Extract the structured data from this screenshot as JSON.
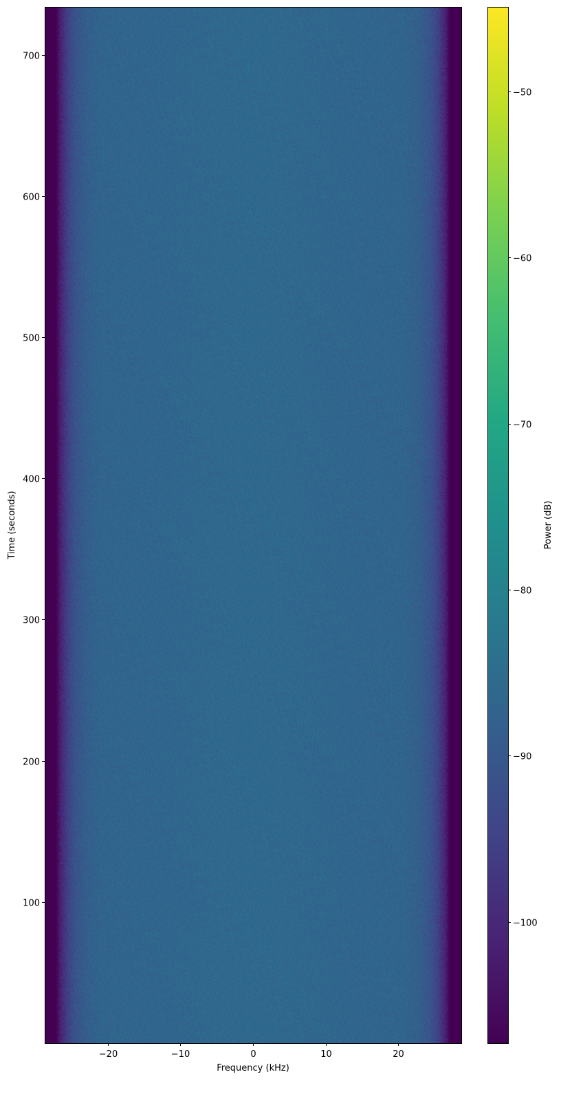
{
  "chart_data": {
    "type": "heatmap",
    "title": "",
    "xlabel": "Frequency (kHz)",
    "ylabel": "Time (seconds)",
    "xlim": [
      -28.7,
      28.7
    ],
    "ylim": [
      0,
      734
    ],
    "xticks": [
      -20,
      -10,
      0,
      10,
      20
    ],
    "xtick_labels": [
      "−20",
      "−10",
      "0",
      "10",
      "20"
    ],
    "yticks": [
      100,
      200,
      300,
      400,
      500,
      600,
      700
    ],
    "ytick_labels": [
      "100",
      "200",
      "300",
      "400",
      "500",
      "600",
      "700"
    ],
    "colormap": "viridis",
    "colorbar": {
      "label": "Power (dB)",
      "clim": [
        -107.3,
        -44.9
      ],
      "ticks": [
        -100,
        -90,
        -80,
        -70,
        -60,
        -50
      ],
      "tick_labels": [
        "−100",
        "−90",
        "−80",
        "−70",
        "−60",
        "−50"
      ]
    },
    "power_profile": {
      "frequency_khz": [
        -28.7,
        -27.2,
        -26.5,
        -25.5,
        -24.5,
        -23,
        -21,
        0,
        21,
        23,
        24.5,
        25.5,
        26.5,
        27.2,
        28.7
      ],
      "mean_power_db": [
        -108,
        -108,
        -101,
        -95,
        -91,
        -88.5,
        -87,
        -86,
        -87,
        -88.5,
        -91,
        -95,
        -101,
        -108,
        -108
      ]
    },
    "grid": false
  }
}
